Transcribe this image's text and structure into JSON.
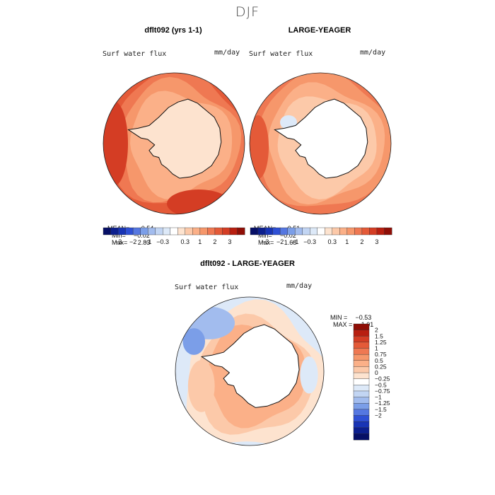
{
  "season_title": "DJF",
  "colors": {
    "pos": [
      "#fde3cf",
      "#fcc9a9",
      "#fbb088",
      "#f6976b",
      "#ef7852",
      "#e45a38",
      "#d43d24",
      "#b81f10",
      "#8f0e06"
    ],
    "neg": [
      "#dde9f8",
      "#c2d5f3",
      "#a2bcee",
      "#7b9ee8",
      "#5577e1",
      "#2f50d5",
      "#1834b5",
      "#0c1f8e",
      "#060f66"
    ],
    "coast": "#111111"
  },
  "chart_data": [
    {
      "type": "heatmap",
      "title": "dflt092 (yrs 1-1)",
      "variable": "Surf water flux",
      "units": "mm/day",
      "projection": "south polar stereographic",
      "stats": {
        "mean_label": "MEAN=",
        "mean": "0.54",
        "min_label": "Min=",
        "min": "−0.02",
        "max_label": "Max=",
        "max": "2.83"
      },
      "colorbar_ticks": [
        "−3",
        "−2",
        "−1",
        "−0.3",
        "0.3",
        "1",
        "2",
        "3"
      ],
      "land_masked": false
    },
    {
      "type": "heatmap",
      "title": "LARGE-YEAGER",
      "variable": "Surf water flux",
      "units": "mm/day",
      "projection": "south polar stereographic",
      "stats": {
        "mean_label": "MEAN=",
        "mean": "0.51",
        "min_label": "Min=",
        "min": "−0.02",
        "max_label": "Max=",
        "max": "1.68"
      },
      "colorbar_ticks": [
        "−3",
        "−2",
        "−1",
        "−0.3",
        "0.3",
        "1",
        "2",
        "3"
      ],
      "land_masked": true
    },
    {
      "type": "heatmap",
      "title": "dflt092 - LARGE-YEAGER",
      "variable": "Surf water flux",
      "units": "mm/day",
      "projection": "south polar stereographic",
      "range_text": {
        "min_label": "MIN =",
        "min": "−0.53",
        "max_label": "MAX =",
        "max": "1.01"
      },
      "colorbar_levels": [
        "2",
        "1.5",
        "1.25",
        "1",
        "0.75",
        "0.5",
        "0.25",
        "0",
        "−0.25",
        "−0.5",
        "−0.75",
        "−1",
        "−1.25",
        "−1.5",
        "−2"
      ],
      "land_masked": true
    }
  ]
}
